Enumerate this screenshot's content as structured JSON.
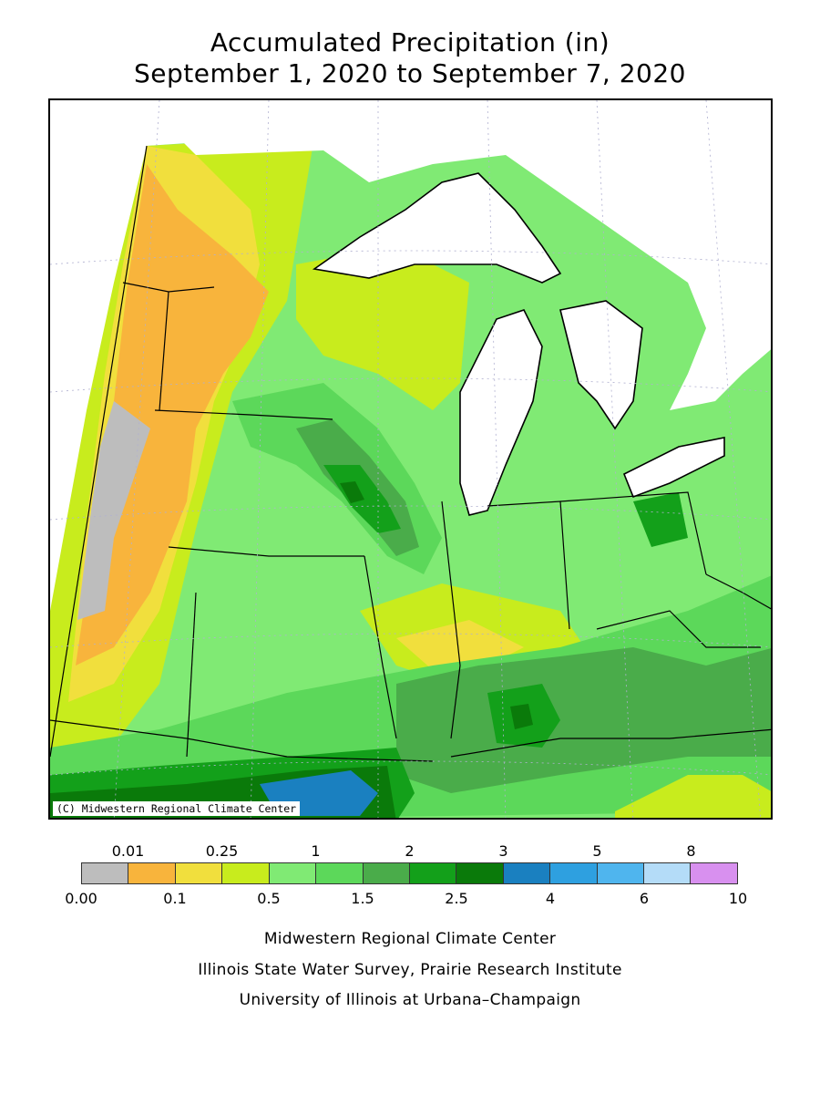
{
  "title": {
    "line1": "Accumulated Precipitation (in)",
    "line2": "September 1, 2020 to September 7, 2020"
  },
  "map": {
    "credit": "(C) Midwestern Regional Climate Center"
  },
  "legend": {
    "colors": [
      "#bdbdbd",
      "#f8b43c",
      "#f1df3d",
      "#c8ec1d",
      "#80ea74",
      "#5cd85a",
      "#4aac4a",
      "#13a01a",
      "#0a7a0a",
      "#1a80c0",
      "#2ea0e0",
      "#4fb5ee",
      "#b4dcf8",
      "#d890ef"
    ],
    "top_ticks": [
      "0.01",
      "0.25",
      "1",
      "2",
      "3",
      "5",
      "8"
    ],
    "bottom_ticks": [
      "0.00",
      "0.1",
      "0.5",
      "1.5",
      "2.5",
      "4",
      "6",
      "10"
    ]
  },
  "footer": {
    "line1": "Midwestern Regional Climate Center",
    "line2": "Illinois State Water Survey, Prairie Research Institute",
    "line3": "University of Illinois at Urbana–Champaign"
  }
}
